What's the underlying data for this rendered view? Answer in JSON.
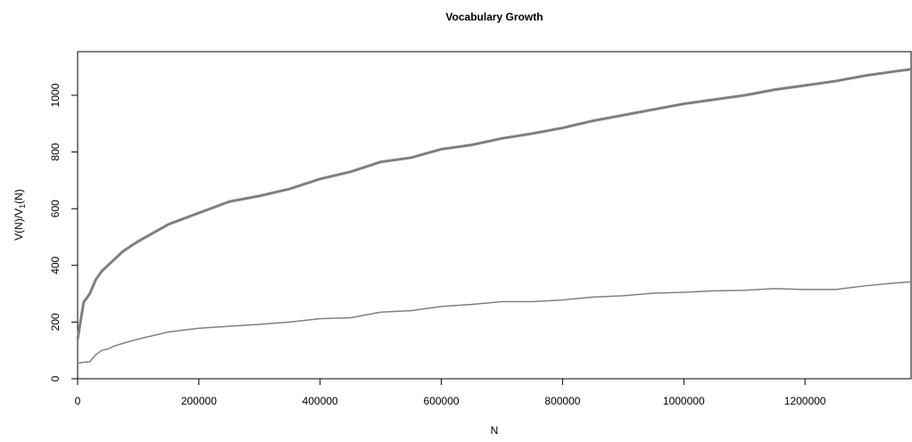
{
  "chart_data": {
    "type": "line",
    "title": "Vocabulary Growth",
    "xlabel": "N",
    "ylabel": [
      "V(N)/V",
      "1",
      "(N)"
    ],
    "x": [
      0,
      10000,
      20000,
      30000,
      40000,
      50000,
      60000,
      75000,
      100000,
      150000,
      200000,
      250000,
      300000,
      350000,
      400000,
      450000,
      500000,
      550000,
      600000,
      650000,
      700000,
      750000,
      800000,
      850000,
      900000,
      950000,
      1000000,
      1050000,
      1100000,
      1150000,
      1200000,
      1250000,
      1300000,
      1350000,
      1375000
    ],
    "series": [
      {
        "color": "#7f7f7f",
        "width": 3,
        "values": [
          140,
          270,
          300,
          350,
          380,
          400,
          420,
          450,
          485,
          545,
          585,
          625,
          645,
          670,
          705,
          730,
          765,
          780,
          810,
          825,
          848,
          865,
          885,
          910,
          930,
          950,
          970,
          985,
          1000,
          1020,
          1035,
          1050,
          1070,
          1085,
          1092
        ]
      },
      {
        "color": "#808080",
        "width": 1.5,
        "values": [
          55,
          58,
          60,
          85,
          100,
          105,
          115,
          125,
          140,
          165,
          178,
          185,
          192,
          200,
          212,
          215,
          235,
          240,
          255,
          262,
          272,
          272,
          278,
          288,
          293,
          302,
          305,
          310,
          312,
          318,
          315,
          315,
          328,
          338,
          342
        ]
      }
    ],
    "xlim": [
      0,
      1375000
    ],
    "ylim": [
      0,
      1154
    ],
    "xticks": [
      0,
      200000,
      400000,
      600000,
      800000,
      1000000,
      1200000
    ],
    "yticks": [
      0,
      200,
      400,
      600,
      800,
      1000
    ]
  }
}
